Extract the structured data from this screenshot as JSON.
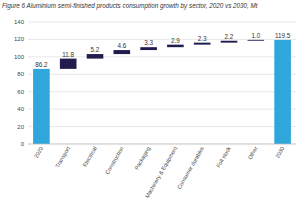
{
  "chart_data": {
    "type": "waterfall",
    "title": "Figure 6 Aluminium semi-finished products consumption growth by sector, 2020 vs 2030, Mt",
    "categories": [
      "2020",
      "Transport",
      "Electrical",
      "Construction",
      "Packaging",
      "Machinery & Equipment",
      "Consumer durables",
      "Foil stock",
      "Other",
      "2030"
    ],
    "values": [
      86.2,
      11.8,
      5.2,
      4.6,
      3.3,
      2.9,
      2.3,
      2.2,
      1.0,
      119.5
    ],
    "colors": [
      "#2fa7dd",
      "#221d4f",
      "#221d4f",
      "#221d4f",
      "#221d4f",
      "#221d4f",
      "#221d4f",
      "#221d4f",
      "#221d4f",
      "#2fa7dd"
    ],
    "ylim": [
      0,
      140
    ],
    "yticks": [
      0,
      20,
      40,
      60,
      80,
      100,
      120,
      140
    ],
    "grid": true,
    "data_labels": true
  }
}
